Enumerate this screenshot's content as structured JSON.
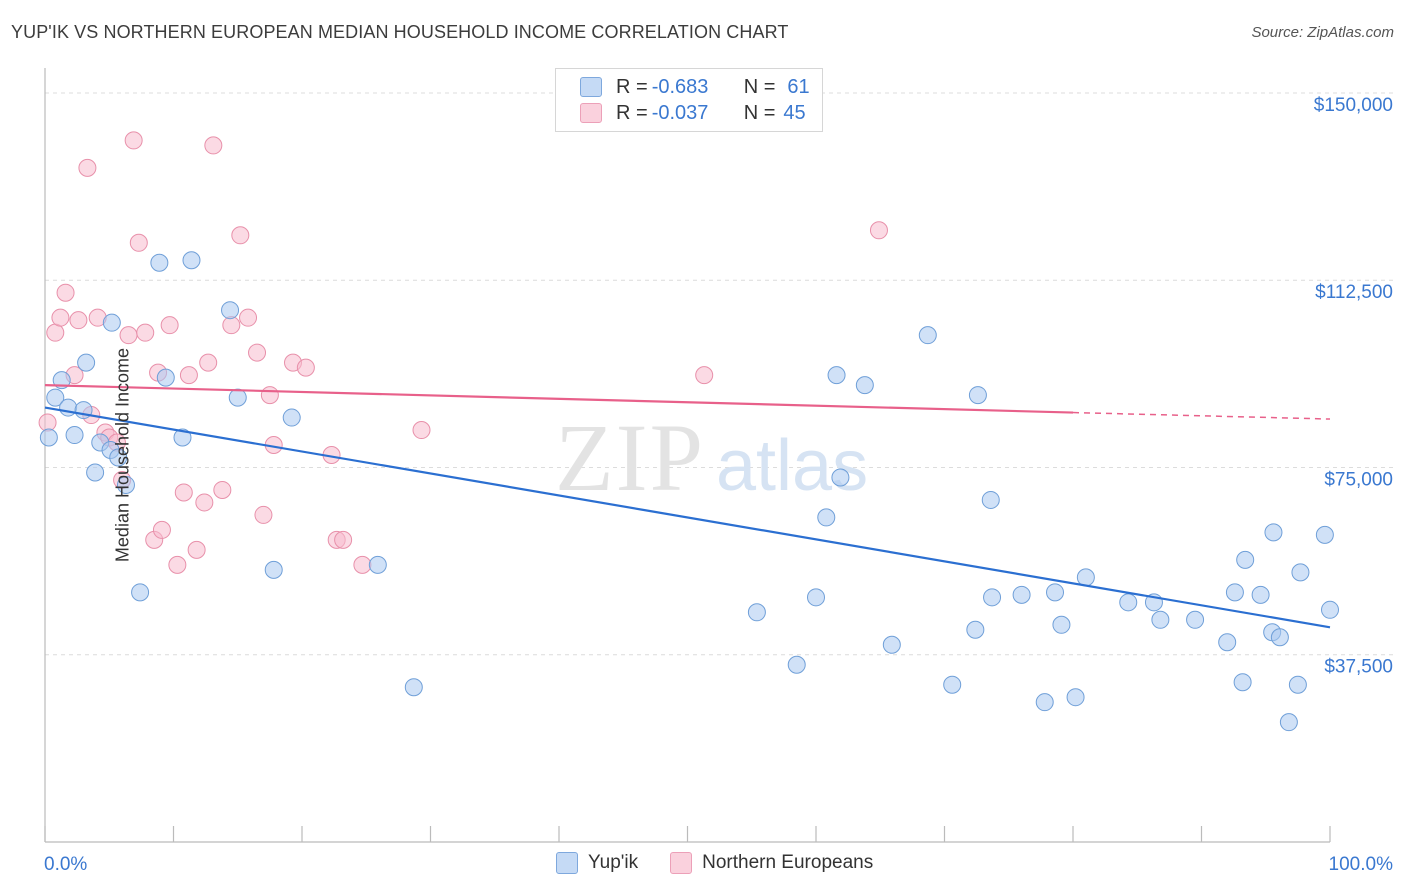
{
  "title": "YUP'IK VS NORTHERN EUROPEAN MEDIAN HOUSEHOLD INCOME CORRELATION CHART",
  "source": "Source: ZipAtlas.com",
  "watermark": {
    "zip": "ZIP",
    "atlas": "atlas"
  },
  "legend": {
    "rows": [
      {
        "r_label": "R = ",
        "r_value": "-0.683",
        "n_label": "N = ",
        "n_value": "61",
        "color": "#a9c8f0"
      },
      {
        "r_label": "R = ",
        "r_value": "-0.037",
        "n_label": "N = ",
        "n_value": "45",
        "color": "#f7bccd"
      }
    ]
  },
  "bottom_legend": [
    {
      "label": "Yup'ik",
      "color": "#a9c8f0"
    },
    {
      "label": "Northern Europeans",
      "color": "#f7bccd"
    }
  ],
  "chart_data": {
    "type": "scatter",
    "title": "YUP'IK VS NORTHERN EUROPEAN MEDIAN HOUSEHOLD INCOME CORRELATION CHART",
    "xlabel": "",
    "ylabel": "Median Household Income",
    "xlim": [
      0,
      100
    ],
    "ylim": [
      0,
      153000
    ],
    "x_tick_labels": [
      "0.0%",
      "100.0%"
    ],
    "y_ticks": [
      37500,
      75000,
      112500,
      150000
    ],
    "y_tick_labels": [
      "$37,500",
      "$75,000",
      "$112,500",
      "$150,000"
    ],
    "grid": true,
    "series": [
      {
        "name": "Yup'ik",
        "color": "#a9c8f0",
        "edge": "#6f9fd8",
        "line_color": "#2b6fd1",
        "trend": {
          "x0": 0,
          "y0": 87000,
          "x1": 100,
          "y1": 43000
        },
        "points": [
          [
            0.3,
            81000
          ],
          [
            0.8,
            89000
          ],
          [
            1.3,
            92500
          ],
          [
            1.8,
            87000
          ],
          [
            2.3,
            81500
          ],
          [
            3.0,
            86500
          ],
          [
            3.2,
            96000
          ],
          [
            3.9,
            74000
          ],
          [
            4.3,
            80000
          ],
          [
            5.1,
            78500
          ],
          [
            5.2,
            104000
          ],
          [
            5.7,
            77000
          ],
          [
            6.3,
            71500
          ],
          [
            7.4,
            50000
          ],
          [
            8.9,
            116000
          ],
          [
            9.4,
            93000
          ],
          [
            10.7,
            81000
          ],
          [
            11.4,
            116500
          ],
          [
            14.4,
            106500
          ],
          [
            15.0,
            89000
          ],
          [
            17.8,
            54500
          ],
          [
            19.2,
            85000
          ],
          [
            25.9,
            55500
          ],
          [
            28.7,
            31000
          ],
          [
            55.4,
            46000
          ],
          [
            58.5,
            35500
          ],
          [
            60.0,
            49000
          ],
          [
            60.8,
            65000
          ],
          [
            61.6,
            93500
          ],
          [
            61.9,
            73000
          ],
          [
            63.8,
            91500
          ],
          [
            65.9,
            39500
          ],
          [
            68.7,
            101500
          ],
          [
            70.6,
            31500
          ],
          [
            72.4,
            42500
          ],
          [
            72.6,
            89500
          ],
          [
            73.6,
            68500
          ],
          [
            73.7,
            49000
          ],
          [
            76.0,
            49500
          ],
          [
            77.8,
            28000
          ],
          [
            78.6,
            50000
          ],
          [
            79.1,
            43500
          ],
          [
            80.2,
            29000
          ],
          [
            81.0,
            53000
          ],
          [
            84.3,
            48000
          ],
          [
            86.3,
            48000
          ],
          [
            86.8,
            44500
          ],
          [
            89.5,
            44500
          ],
          [
            92.0,
            40000
          ],
          [
            92.6,
            50000
          ],
          [
            93.2,
            32000
          ],
          [
            93.4,
            56500
          ],
          [
            94.6,
            49500
          ],
          [
            95.5,
            42000
          ],
          [
            95.6,
            62000
          ],
          [
            96.1,
            41000
          ],
          [
            96.8,
            24000
          ],
          [
            97.5,
            31500
          ],
          [
            97.7,
            54000
          ],
          [
            99.6,
            61500
          ],
          [
            100.0,
            46500
          ]
        ]
      },
      {
        "name": "Northern Europeans",
        "color": "#f7bccd",
        "edge": "#e890aa",
        "line_color": "#e8608a",
        "trend": {
          "x0": 0,
          "y0": 91500,
          "x1": 80,
          "y1": 86000
        },
        "trend_dashed_to": {
          "x": 100,
          "y": 84700
        },
        "points": [
          [
            0.2,
            84000
          ],
          [
            0.8,
            102000
          ],
          [
            1.2,
            105000
          ],
          [
            1.6,
            110000
          ],
          [
            2.3,
            93500
          ],
          [
            2.6,
            104500
          ],
          [
            3.3,
            135000
          ],
          [
            3.6,
            85500
          ],
          [
            4.1,
            105000
          ],
          [
            4.7,
            82000
          ],
          [
            5.0,
            81000
          ],
          [
            5.6,
            80000
          ],
          [
            6.0,
            72500
          ],
          [
            6.5,
            101500
          ],
          [
            6.9,
            140500
          ],
          [
            7.3,
            120000
          ],
          [
            7.8,
            102000
          ],
          [
            8.5,
            60500
          ],
          [
            8.8,
            94000
          ],
          [
            9.1,
            62500
          ],
          [
            9.7,
            103500
          ],
          [
            10.3,
            55500
          ],
          [
            10.8,
            70000
          ],
          [
            11.2,
            93500
          ],
          [
            11.8,
            58500
          ],
          [
            12.4,
            68000
          ],
          [
            12.7,
            96000
          ],
          [
            13.1,
            139500
          ],
          [
            13.8,
            70500
          ],
          [
            14.5,
            103500
          ],
          [
            15.2,
            121500
          ],
          [
            15.8,
            105000
          ],
          [
            16.5,
            98000
          ],
          [
            17.0,
            65500
          ],
          [
            17.5,
            89500
          ],
          [
            17.8,
            79500
          ],
          [
            19.3,
            96000
          ],
          [
            20.3,
            95000
          ],
          [
            22.3,
            77500
          ],
          [
            22.7,
            60500
          ],
          [
            23.2,
            60500
          ],
          [
            24.7,
            55500
          ],
          [
            29.3,
            82500
          ],
          [
            51.3,
            93500
          ],
          [
            64.9,
            122500
          ]
        ]
      }
    ]
  }
}
